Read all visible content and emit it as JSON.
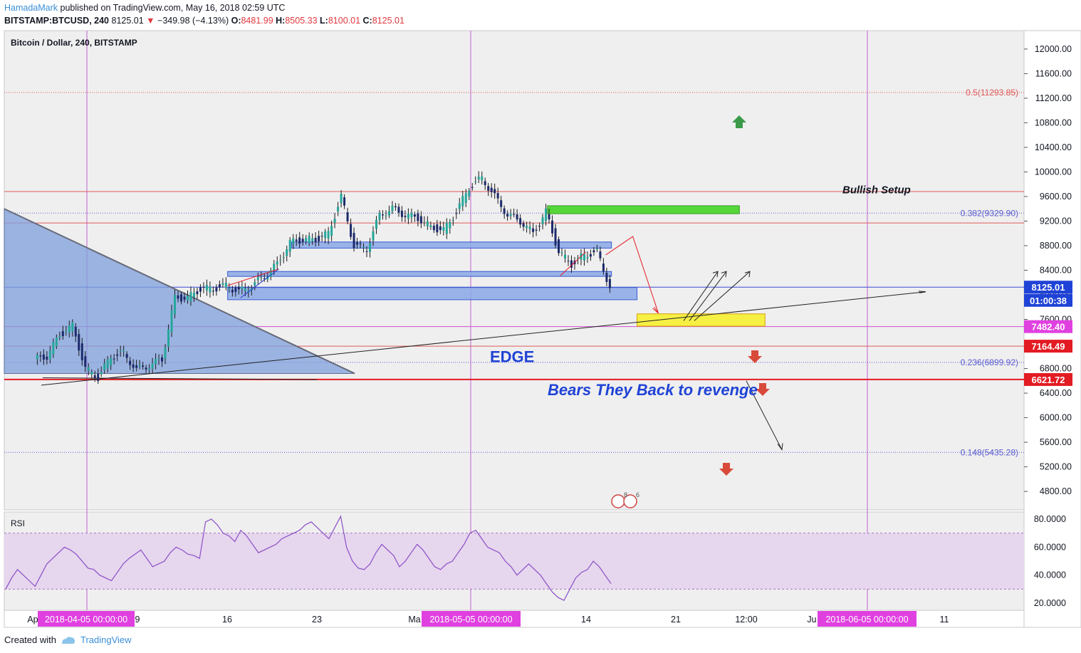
{
  "header": {
    "author": "HamadaMark",
    "published": "published on TradingView.com, May 16, 2018 02:59 UTC",
    "symbol": "BITSTAMP:BTCUSD, 240",
    "last": "8125.01",
    "change": "−349.98 (−4.13%)",
    "ohlc": {
      "o": "8481.99",
      "h": "8505.33",
      "l": "8100.01",
      "c": "8125.01"
    }
  },
  "chart_title": "Bitcoin / Dollar, 240, BITSTAMP",
  "rsi_label": "RSI",
  "footer": {
    "created_with": "Created with",
    "brand": "TradingView"
  },
  "colors": {
    "background": "#efefef",
    "rsi_band": "#e6d6ee",
    "rsi_line": "#8b4fc6",
    "up_candle": "#26a69a",
    "down_candle": "#1d2a6b",
    "zone_blue": "#8aa8e6",
    "zone_green": "#55d73a",
    "zone_yellow": "#f7f044",
    "triangle": "#7f9fdc",
    "pink_label": "#e040e0",
    "red_label": "#e31b23",
    "blue_label": "#1f43d6"
  },
  "chart_data": {
    "type": "candlestick",
    "symbol": "BTCUSD",
    "timeframe": "240",
    "y_axis": {
      "min": 4500,
      "max": 12300,
      "ticks": [
        "12000.00",
        "11600.00",
        "11200.00",
        "10800.00",
        "10400.00",
        "10000.00",
        "9600.00",
        "9200.00",
        "8800.00",
        "8400.00",
        "8000.00",
        "7600.00",
        "7200.00",
        "6800.00",
        "6400.00",
        "6000.00",
        "5600.00",
        "5200.00",
        "4800.00"
      ]
    },
    "x_axis": {
      "ticks": [
        "Ap",
        "9",
        "16",
        "23",
        "Ma",
        "14",
        "21",
        "12:00",
        "Ju",
        "11"
      ],
      "highlight_labels": [
        "2018-04-05 00:00:00",
        "2018-05-05 00:00:00",
        "2018-06-05 00:00:00"
      ]
    },
    "price_path": [
      {
        "t": "Apr 01",
        "price": 6950
      },
      {
        "t": "Apr 02",
        "price": 7000
      },
      {
        "t": "Apr 03",
        "price": 7350
      },
      {
        "t": "Apr 04",
        "price": 7500
      },
      {
        "t": "Apr 05",
        "price": 6800
      },
      {
        "t": "Apr 06",
        "price": 6650
      },
      {
        "t": "Apr 07",
        "price": 7000
      },
      {
        "t": "Apr 08",
        "price": 7050
      },
      {
        "t": "Apr 09",
        "price": 6780
      },
      {
        "t": "Apr 10",
        "price": 6850
      },
      {
        "t": "Apr 11",
        "price": 6950
      },
      {
        "t": "Apr 12",
        "price": 7950
      },
      {
        "t": "Apr 13",
        "price": 7950
      },
      {
        "t": "Apr 14",
        "price": 8100
      },
      {
        "t": "Apr 15",
        "price": 8100
      },
      {
        "t": "Apr 16",
        "price": 8150
      },
      {
        "t": "Apr 17",
        "price": 8050
      },
      {
        "t": "Apr 18",
        "price": 8150
      },
      {
        "t": "Apr 19",
        "price": 8300
      },
      {
        "t": "Apr 20",
        "price": 8500
      },
      {
        "t": "Apr 21",
        "price": 8850
      },
      {
        "t": "Apr 22",
        "price": 8900
      },
      {
        "t": "Apr 23",
        "price": 8900
      },
      {
        "t": "Apr 24",
        "price": 9000
      },
      {
        "t": "Apr 25",
        "price": 9600
      },
      {
        "t": "Apr 26",
        "price": 8800
      },
      {
        "t": "Apr 27",
        "price": 8750
      },
      {
        "t": "Apr 28",
        "price": 9300
      },
      {
        "t": "Apr 29",
        "price": 9400
      },
      {
        "t": "Apr 30",
        "price": 9300
      },
      {
        "t": "May 01",
        "price": 9250
      },
      {
        "t": "May 02",
        "price": 9100
      },
      {
        "t": "May 03",
        "price": 9050
      },
      {
        "t": "May 04",
        "price": 9350
      },
      {
        "t": "May 05",
        "price": 9750
      },
      {
        "t": "May 06",
        "price": 9900
      },
      {
        "t": "May 07",
        "price": 9600
      },
      {
        "t": "May 08",
        "price": 9300
      },
      {
        "t": "May 09",
        "price": 9200
      },
      {
        "t": "May 10",
        "price": 9000
      },
      {
        "t": "May 11",
        "price": 9350
      },
      {
        "t": "May 12",
        "price": 8700
      },
      {
        "t": "May 13",
        "price": 8500
      },
      {
        "t": "May 14",
        "price": 8650
      },
      {
        "t": "May 15",
        "price": 8700
      },
      {
        "t": "May 16",
        "price": 8125
      }
    ],
    "levels": [
      {
        "label": "0.5(11293.85)",
        "value": 11293.85,
        "style": "red-dotted"
      },
      {
        "label": "0.382(9329.90)",
        "value": 9329.9,
        "style": "blue-dotted"
      },
      {
        "label": "0.236(6899.92)",
        "value": 6899.92,
        "style": "blue-dotted"
      },
      {
        "label": "0.148(5435.28)",
        "value": 5435.28,
        "style": "blue-dotted"
      },
      {
        "label": "",
        "value": 9680,
        "style": "red-thin"
      },
      {
        "label": "",
        "value": 9170,
        "style": "red-thin"
      },
      {
        "label": "",
        "value": 7164.49,
        "style": "red-thin"
      },
      {
        "label": "",
        "value": 6621.72,
        "style": "red-thick"
      },
      {
        "label": "",
        "value": 7482.4,
        "style": "magenta-thin"
      },
      {
        "label": "",
        "value": 8125.01,
        "style": "blue-thin"
      }
    ],
    "price_labels": [
      {
        "text": "8125.01",
        "value": 8125.01,
        "color": "#1f43d6"
      },
      {
        "text": "01:00:38",
        "value": 7910,
        "color": "#1f43d6"
      },
      {
        "text": "7482.40",
        "value": 7482.4,
        "color": "#e040e0"
      },
      {
        "text": "7164.49",
        "value": 7164.49,
        "color": "#e31b23"
      },
      {
        "text": "6621.72",
        "value": 6621.72,
        "color": "#e31b23"
      }
    ],
    "zones": [
      {
        "name": "upper-blue-zone",
        "from": "Apr 21",
        "to": "May 16",
        "high": 8860,
        "low": 8760,
        "color": "#8aa8e6"
      },
      {
        "name": "middle-blue-zone",
        "from": "Apr 16",
        "to": "May 16",
        "high": 8380,
        "low": 8300,
        "color": "#8aa8e6"
      },
      {
        "name": "lower-blue-zone",
        "from": "Apr 16",
        "to": "May 18",
        "high": 8120,
        "low": 7920,
        "color": "#8aa8e6"
      },
      {
        "name": "green-zone",
        "from": "May 11",
        "to": "May 26",
        "high": 9450,
        "low": 9320,
        "color": "#55d73a"
      },
      {
        "name": "yellow-zone",
        "from": "May 18",
        "to": "May 28",
        "high": 7690,
        "low": 7490,
        "color": "#f7f044"
      }
    ],
    "annotations": [
      {
        "text": "Bullish Setup",
        "value": 9700,
        "color": "#131722"
      },
      {
        "text": "EDGE",
        "value": 6950,
        "color": "#1f43d6"
      },
      {
        "text": "Bears They Back to revenge",
        "value": 6410,
        "color": "#1f43d6"
      }
    ],
    "rsi": {
      "label": "RSI",
      "y_ticks": [
        "80.0000",
        "60.0000",
        "40.0000",
        "20.0000"
      ],
      "band": [
        30,
        70
      ],
      "ylim": [
        15,
        85
      ],
      "values": [
        30,
        38,
        44,
        40,
        36,
        32,
        40,
        48,
        52,
        56,
        60,
        58,
        55,
        50,
        45,
        44,
        40,
        38,
        36,
        42,
        48,
        52,
        55,
        58,
        52,
        46,
        48,
        50,
        56,
        60,
        58,
        55,
        54,
        52,
        78,
        80,
        76,
        70,
        68,
        64,
        72,
        68,
        62,
        56,
        58,
        60,
        62,
        66,
        68,
        70,
        72,
        76,
        78,
        74,
        70,
        66,
        74,
        82,
        60,
        50,
        45,
        44,
        48,
        56,
        62,
        58,
        54,
        46,
        50,
        56,
        62,
        58,
        52,
        46,
        44,
        48,
        50,
        56,
        62,
        70,
        72,
        66,
        60,
        58,
        56,
        50,
        46,
        40,
        44,
        48,
        44,
        40,
        34,
        28,
        24,
        22,
        30,
        38,
        42,
        44,
        50,
        46,
        40,
        34
      ]
    }
  }
}
